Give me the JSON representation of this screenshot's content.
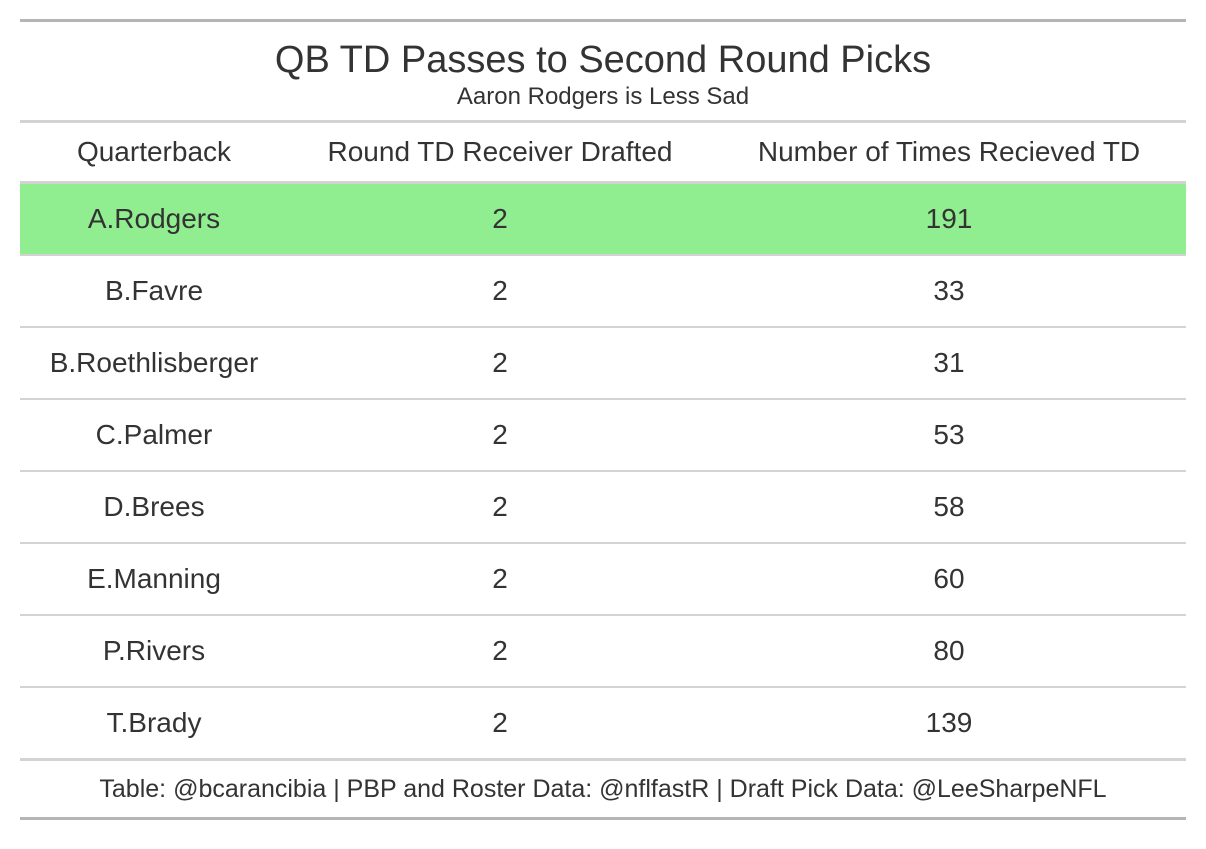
{
  "chart_data": {
    "type": "table",
    "title": "QB TD Passes to Second Round Picks",
    "subtitle": "Aaron Rodgers is Less Sad",
    "columns": [
      "Quarterback",
      "Round TD Receiver Drafted",
      "Number of Times Recieved TD"
    ],
    "rows": [
      {
        "qb": "A.Rodgers",
        "round": "2",
        "count": "191",
        "highlight": true
      },
      {
        "qb": "B.Favre",
        "round": "2",
        "count": "33",
        "highlight": false
      },
      {
        "qb": "B.Roethlisberger",
        "round": "2",
        "count": "31",
        "highlight": false
      },
      {
        "qb": "C.Palmer",
        "round": "2",
        "count": "53",
        "highlight": false
      },
      {
        "qb": "D.Brees",
        "round": "2",
        "count": "58",
        "highlight": false
      },
      {
        "qb": "E.Manning",
        "round": "2",
        "count": "60",
        "highlight": false
      },
      {
        "qb": "P.Rivers",
        "round": "2",
        "count": "80",
        "highlight": false
      },
      {
        "qb": "T.Brady",
        "round": "2",
        "count": "139",
        "highlight": false
      }
    ],
    "highlight_color": "#90ee90",
    "source_note": "Table: @bcarancibia | PBP and Roster Data: @nflfastR | Draft Pick Data: @LeeSharpeNFL"
  }
}
